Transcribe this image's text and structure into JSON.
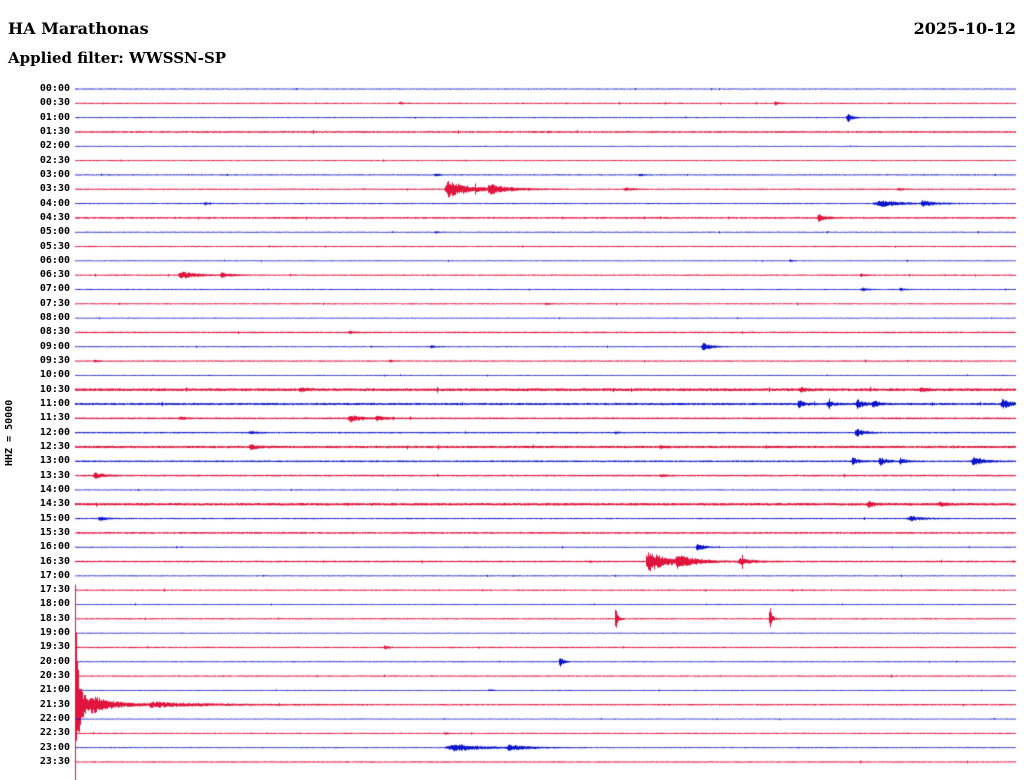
{
  "header": {
    "station_title": "HA Marathonas",
    "date": "2025-10-12",
    "filter_label": "Applied filter: WWSSN-SP"
  },
  "y_axis": {
    "scale_label": "HHZ = 50000"
  },
  "colors": {
    "blue": "#0b14c8",
    "red": "#e0143c",
    "text": "#000000",
    "background": "#ffffff"
  },
  "chart_data": {
    "type": "line",
    "subtype": "helicorder",
    "title": "HA Marathonas",
    "date": "2025-10-12",
    "filter": "WWSSN-SP",
    "channel_scale": "HHZ = 50000",
    "minutes_per_row": 30,
    "row_count": 48,
    "layout": {
      "rows_top_to_bottom": true,
      "trace_color_cycle": [
        "blue",
        "red"
      ],
      "grid": false,
      "legend": false
    },
    "rows": [
      {
        "time": "00:00",
        "color": "blue",
        "noise": 0.55,
        "events": []
      },
      {
        "time": "00:30",
        "color": "red",
        "noise": 0.65,
        "events": [
          {
            "f": 0.345,
            "amp": 1.4,
            "decay": 3
          },
          {
            "f": 0.744,
            "amp": 1.8,
            "decay": 3
          }
        ]
      },
      {
        "time": "01:00",
        "color": "blue",
        "noise": 0.55,
        "events": [
          {
            "f": 0.821,
            "amp": 4.5,
            "decay": 4
          }
        ]
      },
      {
        "time": "01:30",
        "color": "red",
        "noise": 0.9,
        "events": []
      },
      {
        "time": "02:00",
        "color": "blue",
        "noise": 0.5,
        "events": []
      },
      {
        "time": "02:30",
        "color": "red",
        "noise": 0.6,
        "events": []
      },
      {
        "time": "03:00",
        "color": "blue",
        "noise": 0.6,
        "events": [
          {
            "f": 0.383,
            "amp": 1.3,
            "decay": 4
          },
          {
            "f": 0.6,
            "amp": 1.1,
            "decay": 4
          }
        ]
      },
      {
        "time": "03:30",
        "color": "red",
        "noise": 0.7,
        "events": [
          {
            "f": 0.396,
            "amp": 8,
            "decay": 22,
            "rise": 4
          },
          {
            "f": 0.44,
            "amp": 4,
            "decay": 18
          },
          {
            "f": 0.585,
            "amp": 1.6,
            "decay": 6
          },
          {
            "f": 0.875,
            "amp": 1.2,
            "decay": 4
          }
        ]
      },
      {
        "time": "04:00",
        "color": "blue",
        "noise": 0.6,
        "events": [
          {
            "f": 0.138,
            "amp": 1.4,
            "decay": 3
          },
          {
            "f": 0.857,
            "amp": 3,
            "decay": 18,
            "rise": 10
          },
          {
            "f": 0.9,
            "amp": 2.5,
            "decay": 12
          }
        ]
      },
      {
        "time": "04:30",
        "color": "red",
        "noise": 0.9,
        "events": [
          {
            "f": 0.79,
            "amp": 3.5,
            "decay": 6,
            "rise": 2
          }
        ]
      },
      {
        "time": "05:00",
        "color": "blue",
        "noise": 0.55,
        "events": [
          {
            "f": 0.383,
            "amp": 1.1,
            "decay": 3
          }
        ]
      },
      {
        "time": "05:30",
        "color": "red",
        "noise": 0.65,
        "events": []
      },
      {
        "time": "06:00",
        "color": "blue",
        "noise": 0.5,
        "events": [
          {
            "f": 0.76,
            "amp": 1.1,
            "decay": 3
          }
        ]
      },
      {
        "time": "06:30",
        "color": "red",
        "noise": 0.7,
        "events": [
          {
            "f": 0.112,
            "amp": 4,
            "decay": 14,
            "rise": 3
          },
          {
            "f": 0.155,
            "amp": 2,
            "decay": 10
          },
          {
            "f": 0.835,
            "amp": 1.3,
            "decay": 4
          }
        ]
      },
      {
        "time": "07:00",
        "color": "blue",
        "noise": 0.55,
        "events": [
          {
            "f": 0.836,
            "amp": 1.8,
            "decay": 5
          },
          {
            "f": 0.877,
            "amp": 1.5,
            "decay": 4
          }
        ]
      },
      {
        "time": "07:30",
        "color": "red",
        "noise": 0.65,
        "events": [
          {
            "f": 0.5,
            "amp": 1.1,
            "decay": 3
          }
        ]
      },
      {
        "time": "08:00",
        "color": "blue",
        "noise": 0.5,
        "events": []
      },
      {
        "time": "08:30",
        "color": "red",
        "noise": 0.8,
        "events": [
          {
            "f": 0.292,
            "amp": 1.3,
            "decay": 4
          }
        ]
      },
      {
        "time": "09:00",
        "color": "blue",
        "noise": 0.55,
        "events": [
          {
            "f": 0.667,
            "amp": 4,
            "decay": 7,
            "rise": 2
          },
          {
            "f": 0.378,
            "amp": 1.3,
            "decay": 4
          }
        ]
      },
      {
        "time": "09:30",
        "color": "red",
        "noise": 0.7,
        "events": [
          {
            "f": 0.021,
            "amp": 1.1,
            "decay": 3
          },
          {
            "f": 0.335,
            "amp": 1.1,
            "decay": 3
          }
        ]
      },
      {
        "time": "10:00",
        "color": "blue",
        "noise": 0.5,
        "events": []
      },
      {
        "time": "10:30",
        "color": "red",
        "noise": 1.4,
        "events": [
          {
            "f": 0.239,
            "amp": 1.6,
            "decay": 6
          },
          {
            "f": 0.771,
            "amp": 1.8,
            "decay": 6
          },
          {
            "f": 0.899,
            "amp": 1.6,
            "decay": 5
          }
        ]
      },
      {
        "time": "11:00",
        "color": "blue",
        "noise": 1.1,
        "events": [
          {
            "f": 0.769,
            "amp": 3.5,
            "decay": 5
          },
          {
            "f": 0.8,
            "amp": 3,
            "decay": 5
          },
          {
            "f": 0.831,
            "amp": 4.5,
            "decay": 6
          },
          {
            "f": 0.848,
            "amp": 3.5,
            "decay": 5
          },
          {
            "f": 0.985,
            "amp": 4.5,
            "decay": 8
          }
        ]
      },
      {
        "time": "11:30",
        "color": "red",
        "noise": 0.9,
        "events": [
          {
            "f": 0.112,
            "amp": 1.6,
            "decay": 4
          },
          {
            "f": 0.292,
            "amp": 3.5,
            "decay": 10,
            "rise": 3
          },
          {
            "f": 0.32,
            "amp": 2,
            "decay": 8
          }
        ]
      },
      {
        "time": "12:00",
        "color": "blue",
        "noise": 0.75,
        "events": [
          {
            "f": 0.186,
            "amp": 1.7,
            "decay": 5
          },
          {
            "f": 0.83,
            "amp": 4,
            "decay": 7
          },
          {
            "f": 0.574,
            "amp": 1.2,
            "decay": 3
          }
        ]
      },
      {
        "time": "12:30",
        "color": "red",
        "noise": 1.2,
        "events": [
          {
            "f": 0.186,
            "amp": 2,
            "decay": 8
          },
          {
            "f": 0.622,
            "amp": 1.3,
            "decay": 4
          }
        ]
      },
      {
        "time": "13:00",
        "color": "blue",
        "noise": 0.85,
        "events": [
          {
            "f": 0.826,
            "amp": 3.5,
            "decay": 6
          },
          {
            "f": 0.855,
            "amp": 4,
            "decay": 6
          },
          {
            "f": 0.877,
            "amp": 3,
            "decay": 5
          },
          {
            "f": 0.954,
            "amp": 4.5,
            "decay": 9
          }
        ]
      },
      {
        "time": "13:30",
        "color": "red",
        "noise": 0.85,
        "events": [
          {
            "f": 0.021,
            "amp": 2.8,
            "decay": 8,
            "rise": 2
          },
          {
            "f": 0.622,
            "amp": 1.4,
            "decay": 4
          }
        ]
      },
      {
        "time": "14:00",
        "color": "blue",
        "noise": 0.55,
        "events": []
      },
      {
        "time": "14:30",
        "color": "red",
        "noise": 1.3,
        "events": [
          {
            "f": 0.843,
            "amp": 2.5,
            "decay": 6
          },
          {
            "f": 0.919,
            "amp": 2,
            "decay": 5
          }
        ]
      },
      {
        "time": "15:00",
        "color": "blue",
        "noise": 0.65,
        "events": [
          {
            "f": 0.026,
            "amp": 2.2,
            "decay": 6
          },
          {
            "f": 0.888,
            "amp": 2.5,
            "decay": 10,
            "rise": 5
          }
        ]
      },
      {
        "time": "15:30",
        "color": "red",
        "noise": 0.95,
        "events": []
      },
      {
        "time": "16:00",
        "color": "blue",
        "noise": 0.55,
        "events": [
          {
            "f": 0.661,
            "amp": 4.5,
            "decay": 6,
            "rise": 2
          }
        ]
      },
      {
        "time": "16:30",
        "color": "red",
        "noise": 0.85,
        "events": [
          {
            "f": 0.609,
            "amp": 10,
            "decay": 20,
            "rise": 3
          },
          {
            "f": 0.64,
            "amp": 5,
            "decay": 15
          },
          {
            "f": 0.706,
            "amp": 3.5,
            "decay": 10
          }
        ]
      },
      {
        "time": "17:00",
        "color": "blue",
        "noise": 0.55,
        "events": []
      },
      {
        "time": "17:30",
        "color": "red",
        "noise": 0.7,
        "events": []
      },
      {
        "time": "18:00",
        "color": "blue",
        "noise": 0.5,
        "events": []
      },
      {
        "time": "18:30",
        "color": "red",
        "noise": 0.7,
        "events": [
          {
            "f": 0.574,
            "amp": 13,
            "decay": 2,
            "rise": 1
          },
          {
            "f": 0.738,
            "amp": 13,
            "decay": 2,
            "rise": 1
          }
        ]
      },
      {
        "time": "19:00",
        "color": "blue",
        "noise": 0.5,
        "events": []
      },
      {
        "time": "19:30",
        "color": "red",
        "noise": 0.7,
        "events": [
          {
            "f": 0.329,
            "amp": 1.9,
            "decay": 3
          }
        ]
      },
      {
        "time": "20:00",
        "color": "blue",
        "noise": 0.55,
        "events": [
          {
            "f": 0.515,
            "amp": 6.5,
            "decay": 3,
            "rise": 1
          }
        ]
      },
      {
        "time": "20:30",
        "color": "red",
        "noise": 0.7,
        "events": []
      },
      {
        "time": "21:00",
        "color": "blue",
        "noise": 0.5,
        "events": [
          {
            "f": 0.44,
            "amp": 1,
            "decay": 3
          }
        ]
      },
      {
        "time": "21:30",
        "color": "red",
        "noise": 0.75,
        "events": [
          {
            "f": 0.0,
            "amp": 120,
            "decay": 2,
            "rise": 1
          },
          {
            "f": 0.004,
            "amp": 14,
            "decay": 12
          },
          {
            "f": 0.018,
            "amp": 5,
            "decay": 30
          },
          {
            "f": 0.08,
            "amp": 2,
            "decay": 60
          }
        ]
      },
      {
        "time": "22:00",
        "color": "blue",
        "noise": 0.5,
        "events": []
      },
      {
        "time": "22:30",
        "color": "red",
        "noise": 0.65,
        "events": [
          {
            "f": 0.393,
            "amp": 1.1,
            "decay": 3
          }
        ]
      },
      {
        "time": "23:00",
        "color": "blue",
        "noise": 0.55,
        "events": [
          {
            "f": 0.404,
            "amp": 3.5,
            "decay": 25,
            "rise": 12
          },
          {
            "f": 0.46,
            "amp": 2.5,
            "decay": 20
          }
        ]
      },
      {
        "time": "23:30",
        "color": "red",
        "noise": 0.7,
        "events": []
      }
    ]
  }
}
